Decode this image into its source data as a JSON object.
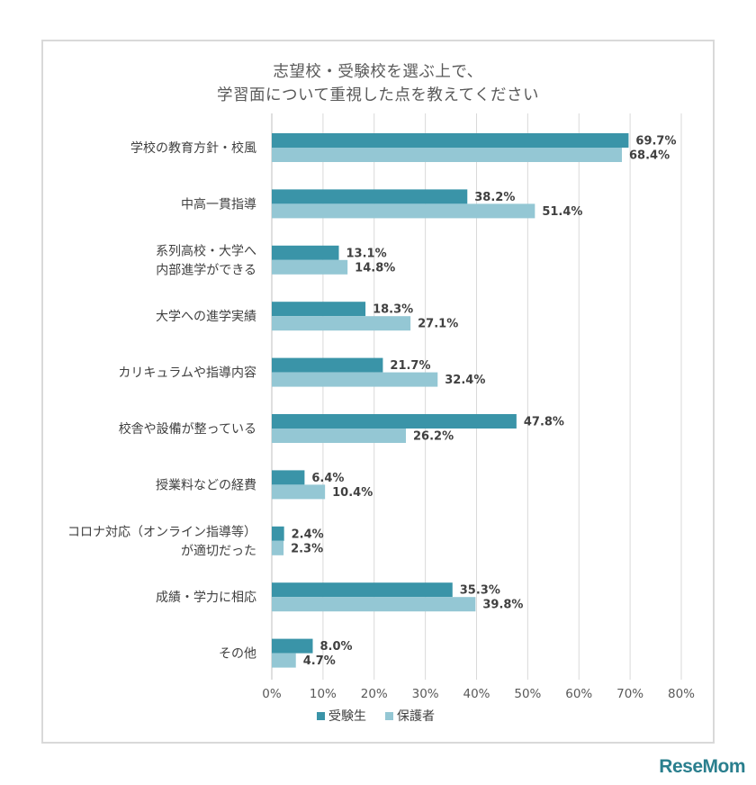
{
  "chart_data": {
    "type": "bar",
    "orientation": "horizontal",
    "title_lines": [
      "志望校・受験校を選ぶ上で、",
      "学習面について重視した点を教えてください"
    ],
    "categories": [
      [
        "学校の教育方針・校風"
      ],
      [
        "中高一貫指導"
      ],
      [
        "系列高校・大学へ",
        "内部進学ができる"
      ],
      [
        "大学への進学実績"
      ],
      [
        "カリキュラムや指導内容"
      ],
      [
        "校舎や設備が整っている"
      ],
      [
        "授業料などの経費"
      ],
      [
        "コロナ対応（オンライン指導等）",
        "が適切だった"
      ],
      [
        "成績・学力に相応"
      ],
      [
        "その他"
      ]
    ],
    "series": [
      {
        "name": "受験生",
        "color": "#3a94a8",
        "values": [
          69.7,
          38.2,
          13.1,
          18.3,
          21.7,
          47.8,
          6.4,
          2.4,
          35.3,
          8.0
        ],
        "labels": [
          "69.7%",
          "38.2%",
          "13.1%",
          "18.3%",
          "21.7%",
          "47.8%",
          "6.4%",
          "2.4%",
          "35.3%",
          "8.0%"
        ]
      },
      {
        "name": "保護者",
        "color": "#94c7d4",
        "values": [
          68.4,
          51.4,
          14.8,
          27.1,
          32.4,
          26.2,
          10.4,
          2.3,
          39.8,
          4.7
        ],
        "labels": [
          "68.4%",
          "51.4%",
          "14.8%",
          "27.1%",
          "32.4%",
          "26.2%",
          "10.4%",
          "2.3%",
          "39.8%",
          "4.7%"
        ]
      }
    ],
    "xlim": [
      0,
      80
    ],
    "xticks": [
      "0%",
      "10%",
      "20%",
      "30%",
      "40%",
      "50%",
      "60%",
      "70%",
      "80%"
    ],
    "grid": true,
    "legend_position": "bottom"
  },
  "watermark": "ReseMom"
}
